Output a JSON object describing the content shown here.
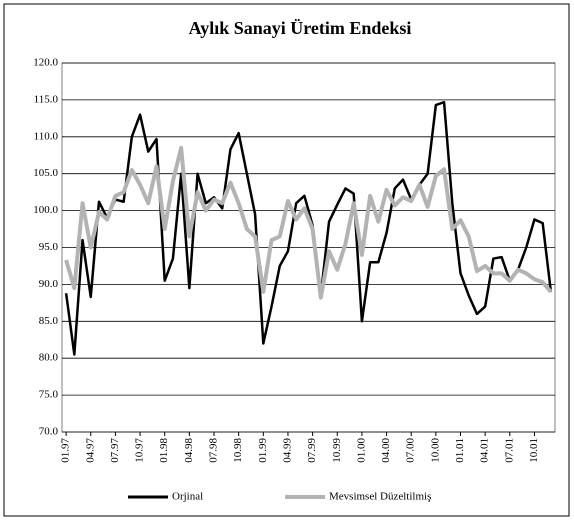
{
  "chart_data": {
    "type": "line",
    "title": "Aylık Sanayi Üretim Endeksi",
    "categories": [
      "01.97",
      null,
      null,
      "04.97",
      null,
      null,
      "07.97",
      null,
      null,
      "10.97",
      null,
      null,
      "01.98",
      null,
      null,
      "04.98",
      null,
      null,
      "07.98",
      null,
      null,
      "10.98",
      null,
      null,
      "01.99",
      null,
      null,
      "04.99",
      null,
      null,
      "07.99",
      null,
      null,
      "10.99",
      null,
      null,
      "01.00",
      null,
      null,
      "04.00",
      null,
      null,
      "07.00",
      null,
      null,
      "10.00",
      null,
      null,
      "01.01",
      null,
      null,
      "04.01",
      null,
      null,
      "07.01",
      null,
      null,
      "10.01",
      null,
      null
    ],
    "series": [
      {
        "name": "Orjinal",
        "color": "#000000",
        "values": [
          88.8,
          80.5,
          96,
          88.3,
          101.2,
          99,
          101.5,
          101.2,
          110,
          113,
          108,
          109.7,
          90.5,
          93.5,
          105,
          89.5,
          105,
          101,
          101.8,
          100.3,
          108.3,
          110.5,
          105,
          99.5,
          82,
          87,
          92.5,
          94.5,
          101,
          102,
          98,
          88.5,
          98.5,
          100.8,
          103,
          102.3,
          85,
          93,
          93,
          97,
          103,
          104.2,
          101.5,
          103.5,
          105,
          114.3,
          114.7,
          101,
          91.5,
          88.5,
          86,
          87,
          93.5,
          93.7,
          90.5,
          92,
          95,
          98.8,
          98.3,
          89
        ]
      },
      {
        "name": "Mevsimsel Düzeltilmiş",
        "color": "#b3b3b3",
        "values": [
          93.3,
          89.5,
          101,
          95,
          99.8,
          98.8,
          102,
          102.5,
          105.5,
          103.5,
          101,
          106,
          97.5,
          104,
          108.5,
          96.5,
          102.5,
          100,
          101.5,
          101,
          103.8,
          101,
          97.5,
          96.5,
          89,
          96,
          96.5,
          101.3,
          98.8,
          100.3,
          97.5,
          88.2,
          94.5,
          92,
          95.5,
          101,
          94,
          102,
          98.5,
          102.8,
          100.7,
          101.8,
          101.3,
          103.5,
          100.5,
          104.7,
          105.6,
          97.5,
          98.7,
          96.5,
          91.8,
          92.5,
          91.5,
          91.5,
          90.5,
          92,
          91.5,
          90.7,
          90.3,
          89
        ]
      }
    ],
    "ylim": [
      70,
      120
    ],
    "yticks": [
      {
        "value": 70,
        "label": "70.0"
      },
      {
        "value": 75,
        "label": "75.0"
      },
      {
        "value": 80,
        "label": "80.0"
      },
      {
        "value": 85,
        "label": "85.0"
      },
      {
        "value": 90,
        "label": "90.0"
      },
      {
        "value": 95,
        "label": "95.0"
      },
      {
        "value": 100,
        "label": "100.0"
      },
      {
        "value": 105,
        "label": "105.0"
      },
      {
        "value": 110,
        "label": "110.0"
      },
      {
        "value": 115,
        "label": "115.0"
      },
      {
        "value": 120,
        "label": "120.0"
      }
    ],
    "grid": true
  }
}
